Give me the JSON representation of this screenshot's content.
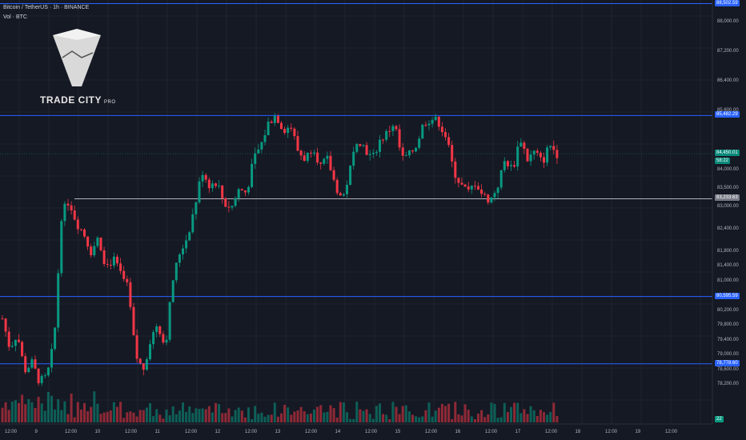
{
  "header": {
    "title": "Bitcoin / TetherUS · 1h · BINANCE",
    "volume_label": "Vol · BTC"
  },
  "logo": {
    "brand": "TRADE CITY",
    "suffix": "PRO"
  },
  "colors": {
    "bg": "#151924",
    "up": "#089981",
    "down": "#f23645",
    "level": "#2962ff",
    "support": "#b2b5be",
    "price": "#0a8a7a"
  },
  "price_axis": {
    "labels": [
      "88,000.00",
      "87,200.00",
      "86,400.00",
      "85,600.00",
      "84,000.00",
      "83,500.00",
      "83,000.00",
      "82,400.00",
      "81,800.00",
      "81,400.00",
      "81,000.00",
      "80,200.00",
      "79,800.00",
      "79,400.00",
      "79,000.00",
      "78,600.00",
      "78,200.00"
    ]
  },
  "price_tags": {
    "top_level": "88,502.59",
    "level2": "85,482.29",
    "current": "84,450.01",
    "countdown": "58:22",
    "support": "83,233.63",
    "level3": "80,595.59",
    "level4": "78,778.60",
    "volume": "22"
  },
  "time_axis": [
    "12:00",
    "9",
    "12:00",
    "10",
    "12:00",
    "11",
    "12:00",
    "12",
    "12:00",
    "13",
    "12:00",
    "14",
    "12:00",
    "15",
    "12:00",
    "16",
    "12:00",
    "17",
    "12:00",
    "18",
    "12:00",
    "19",
    "12:00"
  ],
  "chart_data": {
    "type": "candlestick",
    "title": "Bitcoin / TetherUS · 1h · BINANCE",
    "ylim": [
      77800,
      88600
    ],
    "horizontal_levels": [
      88502.59,
      85482.29,
      83233.63,
      80595.59,
      78778.6
    ],
    "current_price": 84450.01,
    "close_path": [
      80000,
      79200,
      79600,
      78600,
      78800,
      78300,
      78400,
      79400,
      82800,
      83200,
      82600,
      82300,
      81800,
      82200,
      81400,
      81600,
      81200,
      80800,
      79000,
      78600,
      79400,
      79900,
      79200,
      81000,
      81800,
      82200,
      83000,
      84000,
      83600,
      83700,
      83100,
      83000,
      83500,
      83400,
      84300,
      84700,
      85300,
      85500,
      85100,
      85200,
      84500,
      84300,
      84700,
      84100,
      84300,
      83600,
      83200,
      84000,
      84900,
      84600,
      84300,
      84800,
      85000,
      85300,
      84300,
      84400,
      84700,
      85300,
      85400,
      85300,
      84900,
      84000,
      83600,
      83400,
      83700,
      83300,
      83200,
      83600,
      84300,
      84000,
      84900,
      84300,
      84500,
      84200,
      84700,
      84450.01
    ]
  }
}
